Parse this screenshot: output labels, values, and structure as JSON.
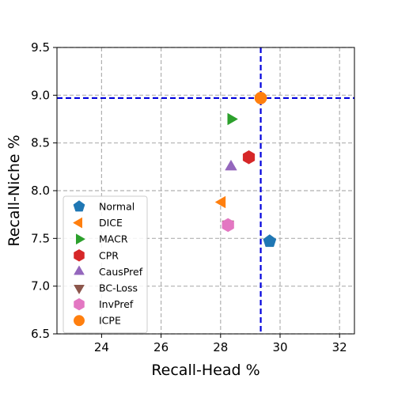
{
  "chart_data": {
    "type": "scatter",
    "xlabel": "Recall-Head %",
    "ylabel": "Recall-Niche %",
    "xlim": [
      22.5,
      32.5
    ],
    "ylim": [
      6.5,
      9.5
    ],
    "xticks": [
      24,
      26,
      28,
      30,
      32
    ],
    "xtick_labels": [
      "24",
      "26",
      "28",
      "30",
      "32"
    ],
    "yticks": [
      6.5,
      7.0,
      7.5,
      8.0,
      8.5,
      9.0,
      9.5
    ],
    "ytick_labels": [
      "6.5",
      "7.0",
      "7.5",
      "8.0",
      "8.5",
      "9.0",
      "9.5"
    ],
    "grid": true,
    "legend_position": "lower-left",
    "reference_lines": {
      "x": 29.35,
      "y": 8.97,
      "color": "#0000dd"
    },
    "series": [
      {
        "name": "Normal",
        "x": 29.65,
        "y": 7.47,
        "marker": "pentagon",
        "color": "#1f77b4"
      },
      {
        "name": "DICE",
        "x": 28.05,
        "y": 7.88,
        "marker": "triangle-left",
        "color": "#ff7f0e"
      },
      {
        "name": "MACR",
        "x": 28.35,
        "y": 8.75,
        "marker": "triangle-right",
        "color": "#2ca02c"
      },
      {
        "name": "CPR",
        "x": 28.95,
        "y": 8.35,
        "marker": "hexagon",
        "color": "#d62728"
      },
      {
        "name": "CausPref",
        "x": 28.35,
        "y": 8.25,
        "marker": "triangle-up",
        "color": "#9467bd"
      },
      {
        "name": "BC-Loss",
        "x": 28.25,
        "y": 7.65,
        "marker": "triangle-down",
        "color": "#8c564b"
      },
      {
        "name": "InvPref",
        "x": 28.25,
        "y": 7.64,
        "marker": "hexagon",
        "color": "#e377c2"
      },
      {
        "name": "ICPE",
        "x": 29.35,
        "y": 8.97,
        "marker": "circle",
        "color": "#ff7f0e"
      }
    ]
  }
}
